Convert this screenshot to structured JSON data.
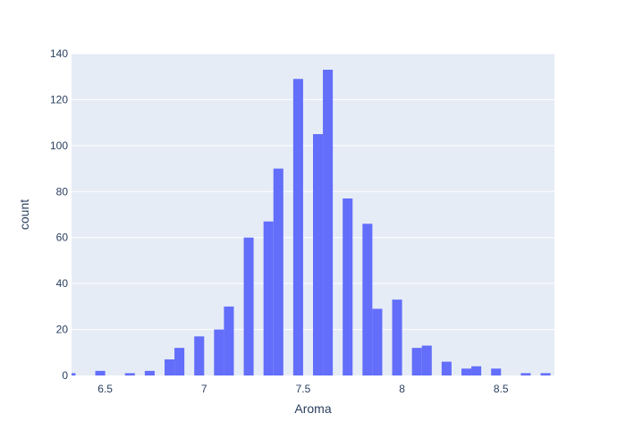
{
  "chart_data": {
    "type": "bar",
    "title": "",
    "xlabel": "Aroma",
    "ylabel": "count",
    "xlim": [
      6.33,
      8.77
    ],
    "ylim": [
      0,
      140
    ],
    "bin_width": 0.05,
    "grid": true,
    "colors": {
      "bar": "#636efa",
      "plot_bg": "#e5ecf6",
      "grid": "#ffffff",
      "text": "#2a3f5f"
    },
    "x_ticks": [
      {
        "value": 6.5,
        "label": "6.5"
      },
      {
        "value": 7,
        "label": "7"
      },
      {
        "value": 7.5,
        "label": "7.5"
      },
      {
        "value": 8,
        "label": "8"
      },
      {
        "value": 8.5,
        "label": "8.5"
      }
    ],
    "y_ticks": [
      {
        "value": 0,
        "label": "0"
      },
      {
        "value": 20,
        "label": "20"
      },
      {
        "value": 40,
        "label": "40"
      },
      {
        "value": 60,
        "label": "60"
      },
      {
        "value": 80,
        "label": "80"
      },
      {
        "value": 100,
        "label": "100"
      },
      {
        "value": 120,
        "label": "120"
      },
      {
        "value": 140,
        "label": "140"
      }
    ],
    "bins": [
      {
        "x0": 6.3,
        "x1": 6.35,
        "count": 1
      },
      {
        "x0": 6.45,
        "x1": 6.5,
        "count": 2
      },
      {
        "x0": 6.6,
        "x1": 6.65,
        "count": 1
      },
      {
        "x0": 6.7,
        "x1": 6.75,
        "count": 2
      },
      {
        "x0": 6.8,
        "x1": 6.85,
        "count": 7
      },
      {
        "x0": 6.85,
        "x1": 6.9,
        "count": 12
      },
      {
        "x0": 6.95,
        "x1": 7.0,
        "count": 17
      },
      {
        "x0": 7.05,
        "x1": 7.1,
        "count": 20
      },
      {
        "x0": 7.1,
        "x1": 7.15,
        "count": 30
      },
      {
        "x0": 7.2,
        "x1": 7.25,
        "count": 60
      },
      {
        "x0": 7.3,
        "x1": 7.35,
        "count": 67
      },
      {
        "x0": 7.35,
        "x1": 7.4,
        "count": 90
      },
      {
        "x0": 7.45,
        "x1": 7.5,
        "count": 129
      },
      {
        "x0": 7.55,
        "x1": 7.6,
        "count": 105
      },
      {
        "x0": 7.6,
        "x1": 7.65,
        "count": 133
      },
      {
        "x0": 7.7,
        "x1": 7.75,
        "count": 77
      },
      {
        "x0": 7.8,
        "x1": 7.85,
        "count": 66
      },
      {
        "x0": 7.85,
        "x1": 7.9,
        "count": 29
      },
      {
        "x0": 7.95,
        "x1": 8.0,
        "count": 33
      },
      {
        "x0": 8.05,
        "x1": 8.1,
        "count": 12
      },
      {
        "x0": 8.1,
        "x1": 8.15,
        "count": 13
      },
      {
        "x0": 8.2,
        "x1": 8.25,
        "count": 6
      },
      {
        "x0": 8.3,
        "x1": 8.35,
        "count": 3
      },
      {
        "x0": 8.35,
        "x1": 8.4,
        "count": 4
      },
      {
        "x0": 8.45,
        "x1": 8.5,
        "count": 3
      },
      {
        "x0": 8.6,
        "x1": 8.65,
        "count": 1
      },
      {
        "x0": 8.7,
        "x1": 8.75,
        "count": 1
      }
    ]
  }
}
